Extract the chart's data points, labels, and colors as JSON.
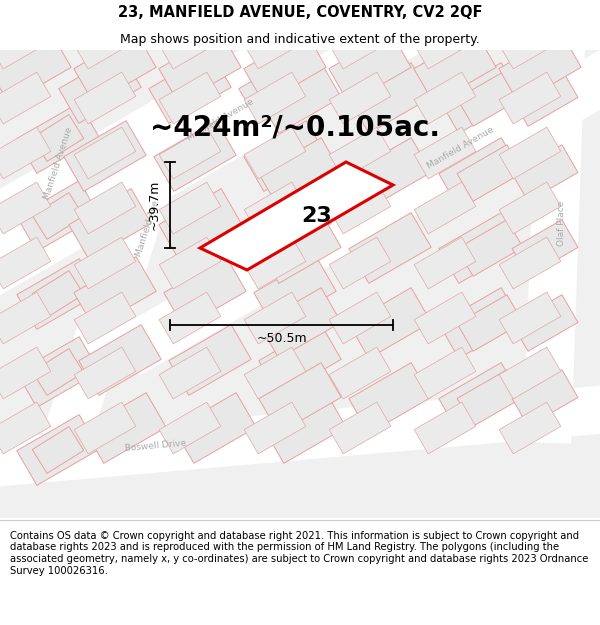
{
  "title_line1": "23, MANFIELD AVENUE, COVENTRY, CV2 2QF",
  "title_line2": "Map shows position and indicative extent of the property.",
  "area_text": "~424m²/~0.105ac.",
  "property_number": "23",
  "width_label": "~50.5m",
  "height_label": "~39.7m",
  "footer_text": "Contains OS data © Crown copyright and database right 2021. This information is subject to Crown copyright and database rights 2023 and is reproduced with the permission of HM Land Registry. The polygons (including the associated geometry, namely x, y co-ordinates) are subject to Crown copyright and database rights 2023 Ordnance Survey 100026316.",
  "road_color": "#ffffff",
  "map_bg_color": "#f2f2f2",
  "block_fill_light": "#e8e8e8",
  "block_fill_white": "#f8f8f8",
  "block_edge_red": "#e8a0a0",
  "block_edge_gray": "#cccccc",
  "plot_line_color": "#cc0000",
  "street_label_color": "#aaaaaa",
  "title_fontsize": 10.5,
  "subtitle_fontsize": 9,
  "area_fontsize": 20,
  "number_fontsize": 16,
  "dim_fontsize": 9,
  "footer_fontsize": 7.2,
  "street_fontsize": 6.5
}
